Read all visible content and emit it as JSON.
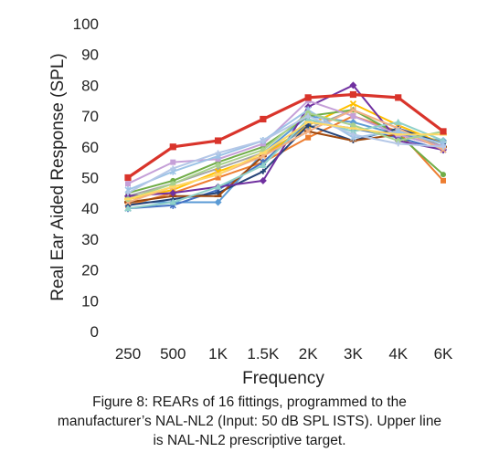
{
  "figure": {
    "caption_lines": [
      "Figure 8: REARs of 16 fittings, programmed to the",
      "manufacturer’s NAL-NL2 (Input: 50 dB SPL ISTS). Upper line",
      "is NAL-NL2 prescriptive target."
    ]
  },
  "chart_data": {
    "type": "line",
    "title": "",
    "xlabel": "Frequency",
    "ylabel": "Real Ear Aided Response (SPL)",
    "categories": [
      "250",
      "500",
      "1K",
      "1.5K",
      "2K",
      "3K",
      "4K",
      "6K"
    ],
    "ylim": [
      0,
      100
    ],
    "yticks": [
      0,
      10,
      20,
      30,
      40,
      50,
      60,
      70,
      80,
      90,
      100
    ],
    "grid": false,
    "legend": "none",
    "series": [
      {
        "color": "#5b9bd5",
        "marker": "diamond",
        "values": [
          42,
          42,
          42,
          58,
          70,
          68,
          64,
          62
        ]
      },
      {
        "color": "#ed7d31",
        "marker": "square",
        "values": [
          41,
          45,
          50,
          55,
          63,
          70,
          65,
          49
        ]
      },
      {
        "color": "#a5a5a5",
        "marker": "triangle",
        "values": [
          44,
          48,
          53,
          58,
          66,
          72,
          66,
          60
        ]
      },
      {
        "color": "#ffc000",
        "marker": "x",
        "values": [
          43,
          46,
          52,
          57,
          67,
          74,
          67,
          61
        ]
      },
      {
        "color": "#4472c4",
        "marker": "star",
        "values": [
          40,
          41,
          46,
          55,
          68,
          66,
          63,
          59
        ]
      },
      {
        "color": "#70ad47",
        "marker": "circle",
        "values": [
          45,
          49,
          55,
          60,
          70,
          72,
          64,
          51
        ]
      },
      {
        "color": "#264478",
        "marker": "plus",
        "values": [
          41,
          43,
          45,
          52,
          67,
          62,
          66,
          61
        ]
      },
      {
        "color": "#9e480e",
        "marker": "dash",
        "values": [
          42,
          44,
          44,
          57,
          65,
          62,
          64,
          60
        ]
      },
      {
        "color": "#7030a0",
        "marker": "diamond",
        "values": [
          44,
          45,
          47,
          49,
          73,
          80,
          62,
          59
        ]
      },
      {
        "color": "#c5a0d8",
        "marker": "square",
        "values": [
          48,
          55,
          56,
          61,
          75,
          70,
          64,
          60
        ]
      },
      {
        "color": "#8fd0c8",
        "marker": "triangle",
        "values": [
          40,
          42,
          47,
          54,
          69,
          65,
          68,
          62
        ]
      },
      {
        "color": "#f4b183",
        "marker": "x",
        "values": [
          42,
          47,
          51,
          57,
          65,
          72,
          66,
          59
        ]
      },
      {
        "color": "#9dc3e6",
        "marker": "star",
        "values": [
          46,
          52,
          57,
          62,
          72,
          63,
          65,
          61
        ]
      },
      {
        "color": "#a9d18e",
        "marker": "circle",
        "values": [
          43,
          48,
          54,
          59,
          71,
          67,
          62,
          65
        ]
      },
      {
        "color": "#b4c7e7",
        "marker": "plus",
        "values": [
          45,
          53,
          58,
          62,
          70,
          64,
          61,
          60
        ]
      },
      {
        "color": "#ffd966",
        "marker": "dash",
        "values": [
          43,
          47,
          51,
          58,
          68,
          66,
          64,
          64
        ]
      },
      {
        "color": "#d9342b",
        "marker": "square",
        "target": true,
        "values": [
          50,
          60,
          62,
          69,
          76,
          77,
          76,
          65
        ]
      }
    ]
  }
}
